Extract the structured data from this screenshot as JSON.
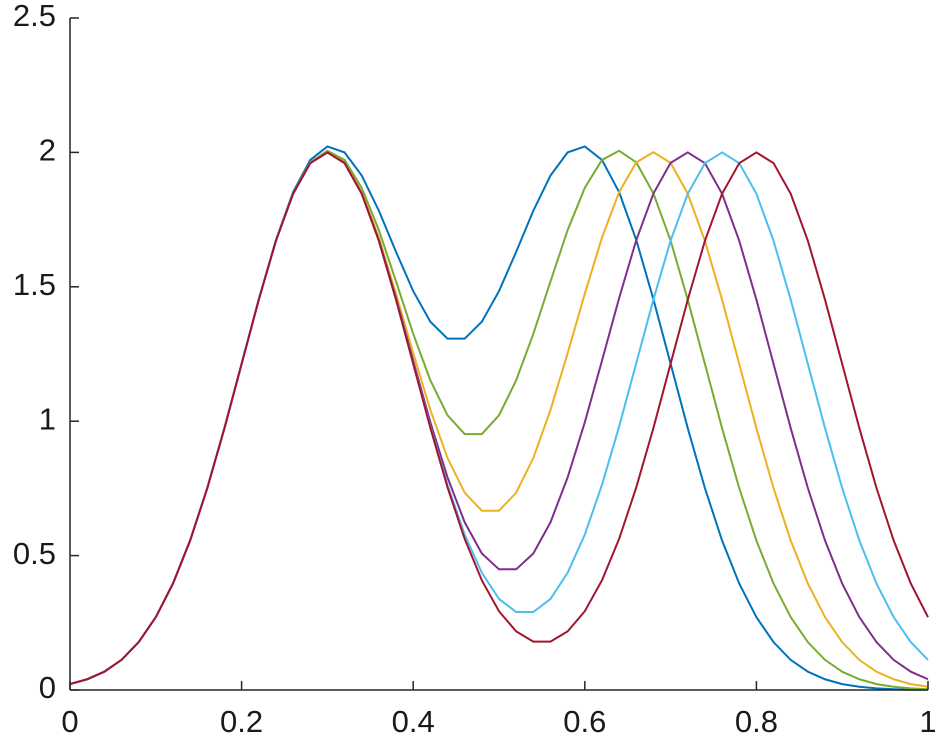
{
  "chart_data": {
    "type": "line",
    "x": [
      0,
      0.02,
      0.04,
      0.06,
      0.08,
      0.1,
      0.12,
      0.14,
      0.16,
      0.18,
      0.2,
      0.22,
      0.24,
      0.26,
      0.28,
      0.3,
      0.32,
      0.34,
      0.36,
      0.38,
      0.4,
      0.42,
      0.44,
      0.46,
      0.48,
      0.5,
      0.52,
      0.54,
      0.56,
      0.58,
      0.6,
      0.62,
      0.64,
      0.66,
      0.68,
      0.7,
      0.72,
      0.74,
      0.76,
      0.78,
      0.8,
      0.82,
      0.84,
      0.86,
      0.88,
      0.9,
      0.92,
      0.94,
      0.96,
      0.98,
      1
    ],
    "series": [
      {
        "color": "#0072bd",
        "values": [
          0.022,
          0.04,
          0.068,
          0.112,
          0.178,
          0.271,
          0.396,
          0.556,
          0.751,
          0.974,
          1.214,
          1.453,
          1.674,
          1.852,
          1.972,
          2.022,
          2.0,
          1.914,
          1.783,
          1.63,
          1.484,
          1.37,
          1.307,
          1.307,
          1.37,
          1.484,
          1.63,
          1.783,
          1.914,
          2.0,
          2.022,
          1.972,
          1.852,
          1.674,
          1.453,
          1.214,
          0.974,
          0.751,
          0.556,
          0.396,
          0.271,
          0.178,
          0.112,
          0.068,
          0.04,
          0.022,
          0.012,
          0.006,
          0.003,
          0.001,
          0.001
        ]
      },
      {
        "color": "#77ac30",
        "values": [
          0.022,
          0.04,
          0.068,
          0.112,
          0.178,
          0.271,
          0.396,
          0.556,
          0.751,
          0.974,
          1.213,
          1.452,
          1.672,
          1.847,
          1.963,
          2.006,
          1.972,
          1.868,
          1.711,
          1.52,
          1.325,
          1.152,
          1.022,
          0.952,
          0.952,
          1.022,
          1.152,
          1.325,
          1.52,
          1.711,
          1.868,
          1.972,
          2.006,
          1.963,
          1.847,
          1.672,
          1.452,
          1.213,
          0.974,
          0.751,
          0.556,
          0.396,
          0.271,
          0.178,
          0.112,
          0.068,
          0.04,
          0.022,
          0.012,
          0.006,
          0.003
        ]
      },
      {
        "color": "#edb120",
        "values": [
          0.022,
          0.04,
          0.068,
          0.112,
          0.178,
          0.271,
          0.396,
          0.556,
          0.751,
          0.974,
          1.213,
          1.452,
          1.671,
          1.846,
          1.961,
          2.001,
          1.963,
          1.852,
          1.683,
          1.474,
          1.253,
          1.042,
          0.863,
          0.734,
          0.667,
          0.667,
          0.734,
          0.863,
          1.042,
          1.253,
          1.474,
          1.683,
          1.852,
          1.963,
          2.001,
          1.961,
          1.846,
          1.671,
          1.452,
          1.213,
          0.974,
          0.751,
          0.556,
          0.396,
          0.271,
          0.178,
          0.112,
          0.068,
          0.04,
          0.022,
          0.012
        ]
      },
      {
        "color": "#7e2f8e",
        "values": [
          0.022,
          0.04,
          0.068,
          0.112,
          0.178,
          0.271,
          0.396,
          0.556,
          0.751,
          0.974,
          1.213,
          1.452,
          1.671,
          1.846,
          1.96,
          2.0,
          1.961,
          1.847,
          1.674,
          1.458,
          1.225,
          0.996,
          0.791,
          0.624,
          0.508,
          0.449,
          0.449,
          0.508,
          0.624,
          0.791,
          0.996,
          1.225,
          1.458,
          1.674,
          1.847,
          1.961,
          2.0,
          1.96,
          1.846,
          1.671,
          1.452,
          1.213,
          0.974,
          0.751,
          0.556,
          0.396,
          0.271,
          0.178,
          0.112,
          0.068,
          0.04
        ]
      },
      {
        "color": "#4dbeee",
        "values": [
          0.022,
          0.04,
          0.068,
          0.112,
          0.178,
          0.271,
          0.396,
          0.556,
          0.751,
          0.974,
          1.213,
          1.452,
          1.671,
          1.846,
          1.96,
          2.0,
          1.96,
          1.846,
          1.672,
          1.453,
          1.216,
          0.98,
          0.763,
          0.578,
          0.436,
          0.339,
          0.29,
          0.29,
          0.339,
          0.436,
          0.578,
          0.763,
          0.98,
          1.216,
          1.453,
          1.672,
          1.846,
          1.96,
          2.0,
          1.96,
          1.846,
          1.671,
          1.452,
          1.213,
          0.974,
          0.751,
          0.556,
          0.396,
          0.271,
          0.178,
          0.112
        ]
      },
      {
        "color": "#a2142f",
        "values": [
          0.022,
          0.04,
          0.068,
          0.112,
          0.178,
          0.271,
          0.396,
          0.556,
          0.751,
          0.974,
          1.213,
          1.452,
          1.671,
          1.846,
          1.96,
          2.0,
          1.96,
          1.846,
          1.671,
          1.452,
          1.214,
          0.975,
          0.754,
          0.562,
          0.408,
          0.293,
          0.218,
          0.18,
          0.18,
          0.218,
          0.293,
          0.408,
          0.562,
          0.754,
          0.975,
          1.214,
          1.452,
          1.671,
          1.846,
          1.96,
          2.0,
          1.96,
          1.846,
          1.671,
          1.452,
          1.213,
          0.974,
          0.751,
          0.556,
          0.396,
          0.271
        ]
      }
    ],
    "xlim": [
      0,
      1
    ],
    "xticks": [
      0,
      0.2,
      0.4,
      0.6,
      0.8,
      1
    ],
    "ylim": [
      0,
      2.5
    ],
    "yticks": [
      0,
      0.5,
      1,
      1.5,
      2,
      2.5
    ],
    "grid": false
  }
}
